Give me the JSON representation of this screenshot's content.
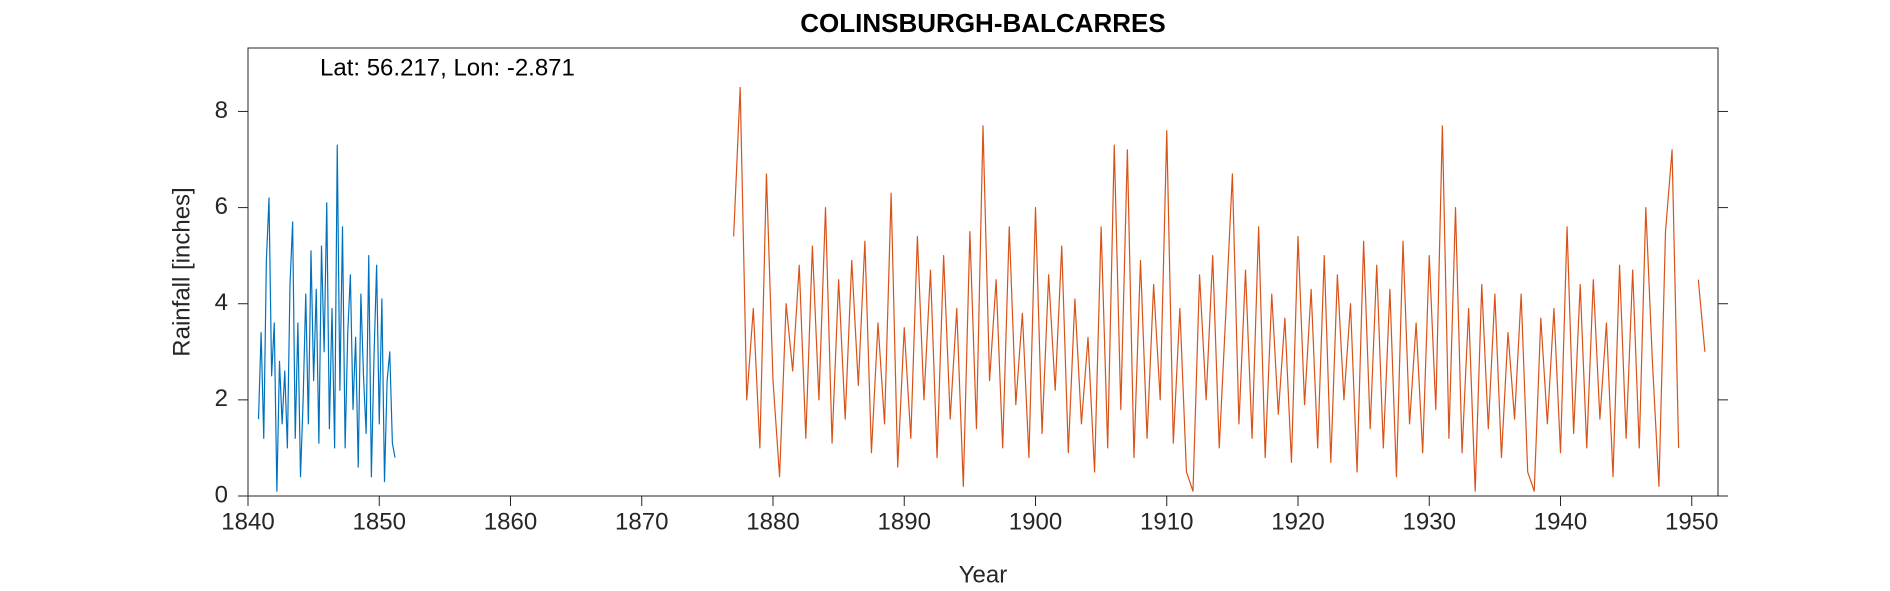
{
  "chart_data": {
    "type": "line",
    "title": "COLINSBURGH-BALCARRES",
    "annotation": "Lat: 56.217, Lon: -2.871",
    "x_label": "Year",
    "y_label": "Rainfall [inches]",
    "xlim": [
      1840,
      1952
    ],
    "xticks": [
      1840,
      1850,
      1860,
      1870,
      1880,
      1890,
      1900,
      1910,
      1920,
      1930,
      1940,
      1950
    ],
    "ylim": [
      0,
      9.32
    ],
    "yticks": [
      0,
      2,
      4,
      6,
      8
    ],
    "grid": false,
    "series": [
      {
        "color": "#0072BD",
        "x": [
          1840.8,
          1841.0,
          1841.2,
          1841.4,
          1841.6,
          1841.8,
          1842.0,
          1842.2,
          1842.4,
          1842.6,
          1842.8,
          1843.0,
          1843.2,
          1843.4,
          1843.6,
          1843.8,
          1844.0,
          1844.2,
          1844.4,
          1844.6,
          1844.8,
          1845.0,
          1845.2,
          1845.4,
          1845.6,
          1845.8,
          1846.0,
          1846.2,
          1846.4,
          1846.6,
          1846.8,
          1847.0,
          1847.2,
          1847.4,
          1847.6,
          1847.8,
          1848.0,
          1848.2,
          1848.4,
          1848.6,
          1848.8,
          1849.0,
          1849.2,
          1849.4,
          1849.6,
          1849.8,
          1850.0,
          1850.2,
          1850.4,
          1850.6,
          1850.8,
          1851.0,
          1851.2
        ],
        "values": [
          1.6,
          3.4,
          1.2,
          4.9,
          6.2,
          2.5,
          3.6,
          0.1,
          2.8,
          1.5,
          2.6,
          1.0,
          4.4,
          5.7,
          1.2,
          3.6,
          0.4,
          2.0,
          4.2,
          1.5,
          5.1,
          2.4,
          4.3,
          1.1,
          5.2,
          3.0,
          6.1,
          1.4,
          3.9,
          1.0,
          7.3,
          2.2,
          5.6,
          1.0,
          3.4,
          4.6,
          1.8,
          3.3,
          0.6,
          4.2,
          2.5,
          1.3,
          5.0,
          0.4,
          2.9,
          4.8,
          1.5,
          4.1,
          0.3,
          2.4,
          3.0,
          1.1,
          0.8
        ]
      },
      {
        "color": "#D95319",
        "x": [
          1877,
          1877.5,
          1878,
          1878.5,
          1879,
          1879.5,
          1880,
          1880.5,
          1881,
          1881.5,
          1882,
          1882.5,
          1883,
          1883.5,
          1884,
          1884.5,
          1885,
          1885.5,
          1886,
          1886.5,
          1887,
          1887.5,
          1888,
          1888.5,
          1889,
          1889.5,
          1890,
          1890.5,
          1891,
          1891.5,
          1892,
          1892.5,
          1893,
          1893.5,
          1894,
          1894.5,
          1895,
          1895.5,
          1896,
          1896.5,
          1897,
          1897.5,
          1898,
          1898.5,
          1899,
          1899.5,
          1900,
          1900.5,
          1901,
          1901.5,
          1902,
          1902.5,
          1903,
          1903.5,
          1904,
          1904.5,
          1905,
          1905.5,
          1906,
          1906.5,
          1907,
          1907.5,
          1908,
          1908.5,
          1909,
          1909.5,
          1910,
          1910.5,
          1911,
          1911.5,
          1912,
          1912.5,
          1913,
          1913.5,
          1914,
          1914.5,
          1915,
          1915.5,
          1916,
          1916.5,
          1917,
          1917.5,
          1918,
          1918.5,
          1919,
          1919.5,
          1920,
          1920.5,
          1921,
          1921.5,
          1922,
          1922.5,
          1923,
          1923.5,
          1924,
          1924.5,
          1925,
          1925.5,
          1926,
          1926.5,
          1927,
          1927.5,
          1928,
          1928.5,
          1929,
          1929.5,
          1930,
          1930.5,
          1931,
          1931.5,
          1932,
          1932.5,
          1933,
          1933.5,
          1934,
          1934.5,
          1935,
          1935.5,
          1936,
          1936.5,
          1937,
          1937.5,
          1938,
          1938.5,
          1939,
          1939.5,
          1940,
          1940.5,
          1941,
          1941.5,
          1942,
          1942.5,
          1943,
          1943.5,
          1944,
          1944.5,
          1945,
          1945.5,
          1946,
          1946.5,
          1947,
          1947.5,
          1948,
          1948.5,
          1949,
          1949.5,
          1950.5,
          1951
        ],
        "values": [
          5.4,
          8.5,
          2.0,
          3.9,
          1.0,
          6.7,
          2.4,
          0.4,
          4.0,
          2.6,
          4.8,
          1.2,
          5.2,
          2.0,
          6.0,
          1.1,
          4.5,
          1.6,
          4.9,
          2.3,
          5.3,
          0.9,
          3.6,
          1.5,
          6.3,
          0.6,
          3.5,
          1.2,
          5.4,
          2.0,
          4.7,
          0.8,
          5.0,
          1.6,
          3.9,
          0.2,
          5.5,
          1.4,
          7.7,
          2.4,
          4.5,
          1.0,
          5.6,
          1.9,
          3.8,
          0.8,
          6.0,
          1.3,
          4.6,
          2.2,
          5.2,
          0.9,
          4.1,
          1.5,
          3.3,
          0.5,
          5.6,
          1.0,
          7.3,
          1.8,
          7.2,
          0.8,
          4.9,
          1.2,
          4.4,
          2.0,
          7.6,
          1.1,
          3.9,
          0.5,
          0.1,
          4.6,
          2.0,
          5.0,
          1.0,
          3.8,
          6.7,
          1.5,
          4.7,
          1.2,
          5.6,
          0.8,
          4.2,
          1.7,
          3.7,
          0.7,
          5.4,
          1.9,
          4.3,
          1.0,
          5.0,
          0.7,
          4.6,
          2.0,
          4.0,
          0.5,
          5.3,
          1.4,
          4.8,
          1.0,
          4.3,
          0.4,
          5.3,
          1.5,
          3.6,
          0.9,
          5.0,
          1.8,
          7.7,
          1.2,
          6.0,
          0.9,
          3.9,
          0.1,
          4.4,
          1.4,
          4.2,
          0.8,
          3.4,
          1.6,
          4.2,
          0.5,
          0.1,
          3.7,
          1.5,
          3.9,
          0.9,
          5.6,
          1.3,
          4.4,
          1.0,
          4.5,
          1.6,
          3.6,
          0.4,
          4.8,
          1.2,
          4.7,
          1.0,
          6.0,
          2.8,
          0.2,
          5.5,
          7.2,
          1.0,
          null,
          4.5,
          3.0
        ]
      }
    ]
  }
}
